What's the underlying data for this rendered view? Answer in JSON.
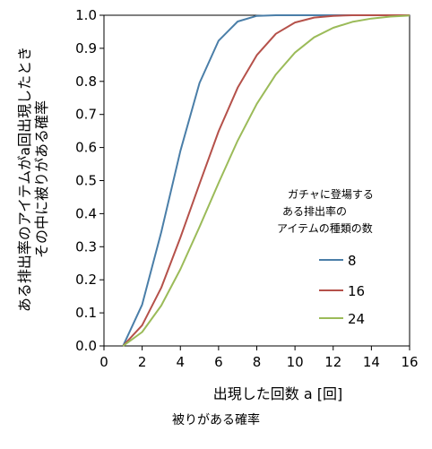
{
  "chart_data": {
    "type": "line",
    "title": "",
    "caption": "被りがある確率",
    "xlabel": "出現した回数 a [回]",
    "ylabel_lines": [
      "ある排出率のアイテムがa回出現したとき",
      "その中に被りがある確率"
    ],
    "xlim": [
      0,
      16
    ],
    "ylim": [
      0.0,
      1.0
    ],
    "x_ticks": [
      "0",
      "2",
      "4",
      "6",
      "8",
      "10",
      "12",
      "14",
      "16"
    ],
    "y_ticks": [
      "0.0",
      "0.1",
      "0.2",
      "0.3",
      "0.4",
      "0.5",
      "0.6",
      "0.7",
      "0.8",
      "0.9",
      "1.0"
    ],
    "grid": false,
    "legend": {
      "title_lines": [
        "ガチャに登場する",
        "ある排出率の",
        "アイテムの種類の数"
      ],
      "placement": "center-right"
    },
    "series": [
      {
        "name": "8",
        "color": "#4a7ea8",
        "x": [
          1,
          2,
          3,
          4,
          5,
          6,
          7,
          8,
          9,
          10,
          11,
          12,
          13,
          14,
          15,
          16
        ],
        "y": [
          0.0,
          0.125,
          0.344,
          0.59,
          0.795,
          0.923,
          0.981,
          0.998,
          1.0,
          1.0,
          1.0,
          1.0,
          1.0,
          1.0,
          1.0,
          1.0
        ]
      },
      {
        "name": "16",
        "color": "#b5514a",
        "x": [
          1,
          2,
          3,
          4,
          5,
          6,
          7,
          8,
          9,
          10,
          11,
          12,
          13,
          14,
          15,
          16
        ],
        "y": [
          0.0,
          0.0625,
          0.176,
          0.328,
          0.49,
          0.649,
          0.781,
          0.879,
          0.944,
          0.978,
          0.993,
          0.998,
          1.0,
          1.0,
          1.0,
          1.0
        ]
      },
      {
        "name": "24",
        "color": "#9bbb59",
        "x": [
          1,
          2,
          3,
          4,
          5,
          6,
          7,
          8,
          9,
          10,
          11,
          12,
          13,
          14,
          15,
          16
        ],
        "y": [
          0.0,
          0.042,
          0.122,
          0.232,
          0.36,
          0.493,
          0.621,
          0.732,
          0.821,
          0.887,
          0.933,
          0.962,
          0.98,
          0.99,
          0.996,
          0.999
        ]
      }
    ]
  }
}
